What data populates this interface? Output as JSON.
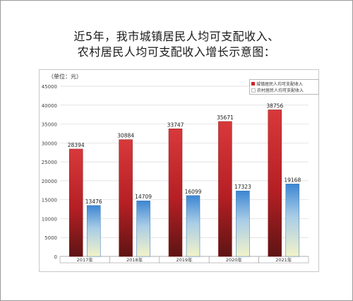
{
  "title_line1": "近5年，我市城镇居民人均可支配收入、",
  "title_line2": "农村居民人均可支配收入增长示意图：",
  "chart_data": {
    "type": "bar",
    "unit_label": "（单位：元）",
    "categories": [
      "2017年",
      "2018年",
      "2019年",
      "2020年",
      "2021年"
    ],
    "series": [
      {
        "name": "城镇居民人均可支配收入",
        "values": [
          28394,
          30884,
          33747,
          35671,
          38756
        ],
        "color": "#c8262a"
      },
      {
        "name": "农村居民人均可支配收入",
        "values": [
          13476,
          14709,
          16099,
          17323,
          19168
        ],
        "color": "#4a8fd6"
      }
    ],
    "ylim": [
      0,
      45000
    ],
    "yticks": [
      0,
      5000,
      10000,
      15000,
      20000,
      25000,
      30000,
      35000,
      40000,
      45000
    ],
    "grid": true,
    "legend_position": "top-right",
    "data_labels": true
  }
}
